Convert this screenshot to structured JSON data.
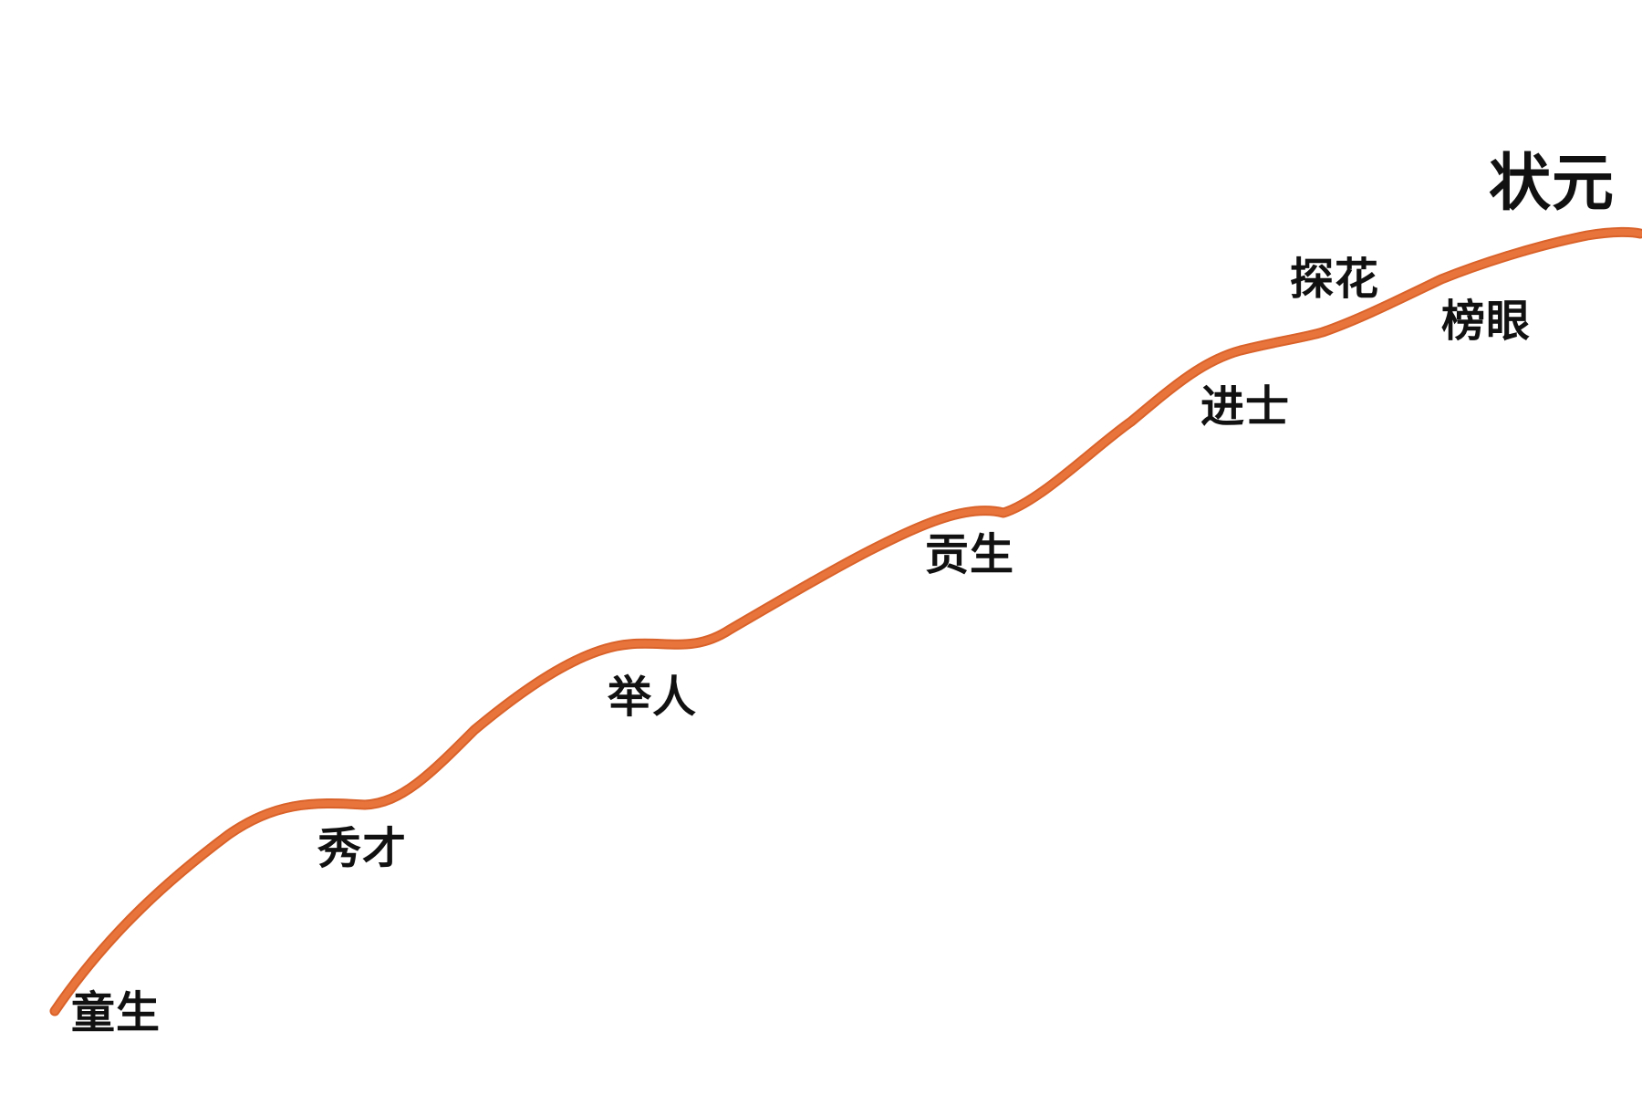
{
  "diagram": {
    "ranks": {
      "tongsheng": "童生",
      "xiucai": "秀才",
      "juren": "举人",
      "gongsheng": "贡生",
      "jinshi": "进士",
      "tanhua": "探花",
      "bangyan": "榜眼",
      "zhuangyuan": "状元"
    },
    "colors": {
      "curve": "#e8743b",
      "curve_edge": "#d9622a",
      "text": "#111111",
      "background": "#ffffff"
    }
  }
}
